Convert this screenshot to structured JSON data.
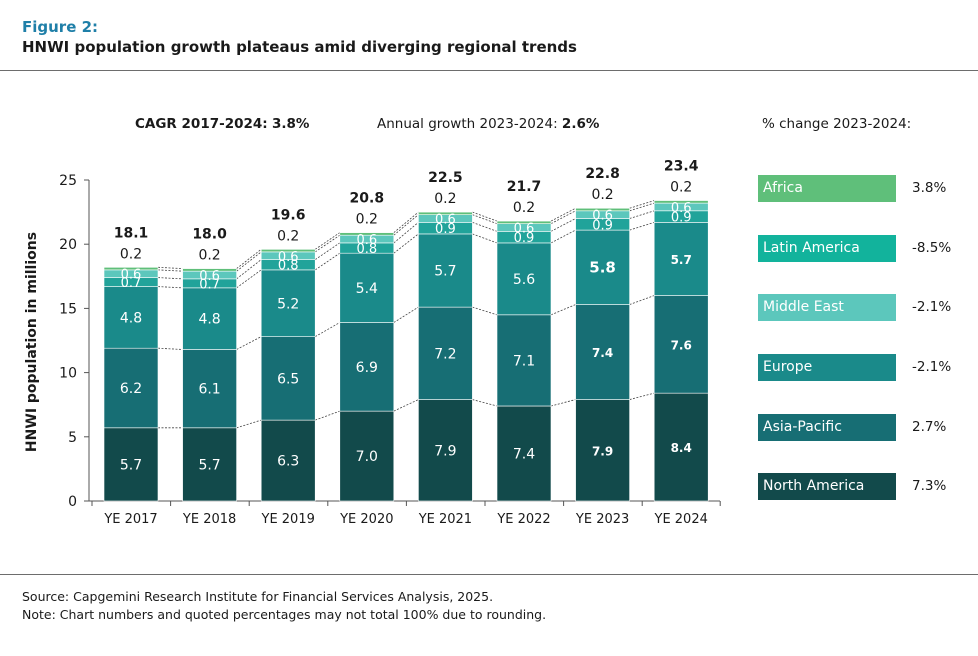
{
  "figure": {
    "label": "Figure 2:",
    "title": "HNWI population growth plateaus amid diverging regional trends"
  },
  "header": {
    "cagr_label": "CAGR 2017-2024:",
    "cagr_value": "3.8%",
    "annual_label": "Annual growth 2023-2024:",
    "annual_value": "2.6%",
    "pct_change_label": "% change 2023-2024:"
  },
  "legend": [
    {
      "name": "Africa",
      "change": "3.8%",
      "color": "#5fbf7a"
    },
    {
      "name": "Latin America",
      "change": "-8.5%",
      "color": "#12b39c"
    },
    {
      "name": "Middle East",
      "change": "-2.1%",
      "color": "#5cc7bc"
    },
    {
      "name": "Europe",
      "change": "-2.1%",
      "color": "#1a8a8a"
    },
    {
      "name": "Asia-Pacific",
      "change": "2.7%",
      "color": "#176e74"
    },
    {
      "name": "North America",
      "change": "7.3%",
      "color": "#124a4b"
    }
  ],
  "chart_data": {
    "type": "bar",
    "stacked": true,
    "ylabel": "HNWI population in millions",
    "xlabel": "",
    "ylim": [
      0,
      25
    ],
    "yticks": [
      0,
      5,
      10,
      15,
      20,
      25
    ],
    "categories": [
      "YE 2017",
      "YE 2018",
      "YE 2019",
      "YE 2020",
      "YE 2021",
      "YE 2022",
      "YE 2023",
      "YE 2024"
    ],
    "totals": [
      "18.1",
      "18.0",
      "19.6",
      "20.8",
      "22.5",
      "21.7",
      "22.8",
      "23.4"
    ],
    "series": [
      {
        "name": "North America",
        "color": "#124a4b",
        "values": [
          5.7,
          5.7,
          6.3,
          7.0,
          7.9,
          7.4,
          7.9,
          8.4
        ],
        "labels": [
          "5.7",
          "5.7",
          "6.3",
          "7.0",
          "7.9",
          "7.4",
          "7.9",
          "8.4"
        ]
      },
      {
        "name": "Asia-Pacific",
        "color": "#176e74",
        "values": [
          6.2,
          6.1,
          6.5,
          6.9,
          7.2,
          7.1,
          7.4,
          7.6
        ],
        "labels": [
          "6.2",
          "6.1",
          "6.5",
          "6.9",
          "7.2",
          "7.1",
          "7.4",
          "7.6"
        ]
      },
      {
        "name": "Europe",
        "color": "#1a8a8a",
        "values": [
          4.8,
          4.8,
          5.2,
          5.4,
          5.7,
          5.6,
          5.8,
          5.7
        ],
        "labels": [
          "4.8",
          "4.8",
          "5.2",
          "5.4",
          "5.7",
          "5.6",
          "5.8",
          "5.7"
        ]
      },
      {
        "name": "Middle East",
        "color": "#21a39a",
        "values": [
          0.7,
          0.7,
          0.8,
          0.8,
          0.9,
          0.9,
          0.9,
          0.9
        ],
        "labels": [
          "0.7",
          "0.7",
          "0.8",
          "0.8",
          "0.9",
          "0.9",
          "0.9",
          "0.9"
        ]
      },
      {
        "name": "Latin America",
        "color": "#5cc7bc",
        "values": [
          0.6,
          0.6,
          0.6,
          0.6,
          0.6,
          0.6,
          0.6,
          0.6
        ],
        "labels": [
          "0.6",
          "0.6",
          "0.6",
          "0.6",
          "0.6",
          "0.6",
          "0.6",
          "0.6"
        ]
      },
      {
        "name": "Africa",
        "color": "#5fbf7a",
        "values": [
          0.2,
          0.2,
          0.2,
          0.2,
          0.2,
          0.2,
          0.2,
          0.2
        ],
        "labels": [
          "0.2",
          "0.2",
          "0.2",
          "0.2",
          "0.2",
          "0.2",
          "0.2",
          "0.2"
        ]
      }
    ]
  },
  "footer": {
    "source": "Source: Capgemini Research Institute for Financial Services Analysis, 2025.",
    "note": "Note: Chart numbers and quoted percentages may not total 100% due to rounding."
  }
}
